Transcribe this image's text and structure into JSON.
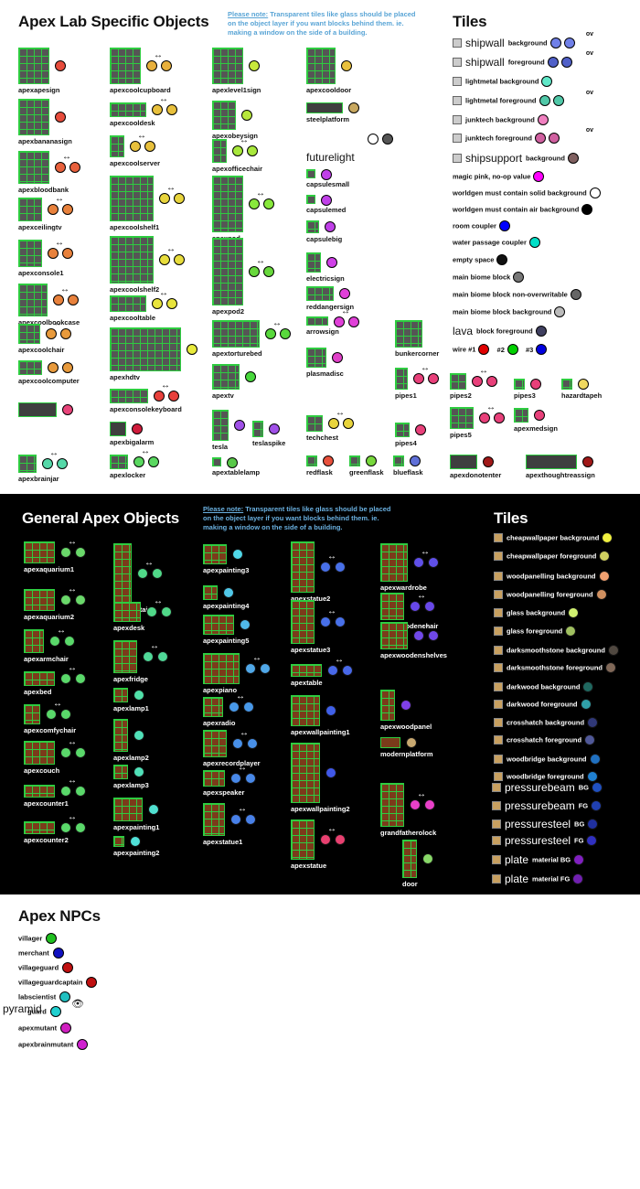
{
  "lab": {
    "title": "Apex Lab Specific Objects",
    "note_prefix": "Please note:",
    "note_text": " Transparent tiles like glass should be placed on the object layer if you want blocks behind them. ie. making a window on the side of a building.",
    "tiles_title": "Tiles",
    "objects": [
      {
        "label": "apexapesign",
        "colors": [
          "#e74c3c"
        ],
        "arrow": false
      },
      {
        "label": "apexbananasign",
        "colors": [
          "#e74c3c"
        ],
        "arrow": false
      },
      {
        "label": "apexbloodbank",
        "colors": [
          "#e8603c",
          "#e8603c"
        ],
        "arrow": true
      },
      {
        "label": "apexceilingtv",
        "colors": [
          "#e8813c",
          "#e8813c"
        ],
        "arrow": true
      },
      {
        "label": "apexconsole1",
        "colors": [
          "#e8813c",
          "#e8813c"
        ],
        "arrow": true
      },
      {
        "label": "apexcoolbookcase",
        "colors": [
          "#e8813c",
          "#e8813c"
        ],
        "arrow": true
      },
      {
        "label": "apexcoolchair",
        "colors": [
          "#e89a3c",
          "#e89a3c"
        ],
        "arrow": true
      },
      {
        "label": "apexcoolcomputer",
        "colors": [
          "#e89a3c",
          "#e89a3c"
        ],
        "arrow": false
      },
      {
        "label": "",
        "colors": [
          "#e8447a"
        ],
        "arrow": false
      },
      {
        "label": "apexbrainjar",
        "colors": [
          "#55d8a8",
          "#55d8a8"
        ],
        "arrow": true
      },
      {
        "label": "apexcoolcupboard",
        "colors": [
          "#e8b03c",
          "#e8b03c"
        ],
        "arrow": true
      },
      {
        "label": "apexcooldesk",
        "colors": [
          "#e8c03c",
          "#e8c03c"
        ],
        "arrow": true
      },
      {
        "label": "apexcoolserver",
        "colors": [
          "#e8c03c",
          "#e8c03c"
        ],
        "arrow": true
      },
      {
        "label": "apexcoolshelf1",
        "colors": [
          "#e8d43c",
          "#e8d43c"
        ],
        "arrow": true
      },
      {
        "label": "apexcoolshelf2",
        "colors": [
          "#e8dd3c",
          "#e8dd3c"
        ],
        "arrow": true
      },
      {
        "label": "apexcooltable",
        "colors": [
          "#e8e43c",
          "#e8e43c"
        ],
        "arrow": true
      },
      {
        "label": "apexhdtv",
        "colors": [
          "#e8ea3c"
        ],
        "arrow": false
      },
      {
        "label": "apexconsolekeyboard",
        "colors": [
          "#e8403c",
          "#e8403c"
        ],
        "arrow": true
      },
      {
        "label": "apexbigalarm",
        "colors": [
          "#d01c3c"
        ],
        "arrow": false
      },
      {
        "label": "apexlocker",
        "colors": [
          "#5ad860",
          "#5ad860"
        ],
        "arrow": true
      },
      {
        "label": "apexlevel1sign",
        "colors": [
          "#c8e83c"
        ],
        "arrow": false
      },
      {
        "label": "apexobeysign",
        "colors": [
          "#b8e83c"
        ],
        "arrow": false
      },
      {
        "label": "apexofficechair",
        "colors": [
          "#a8e83c",
          "#a8e83c"
        ],
        "arrow": true
      },
      {
        "label": "apexpod",
        "colors": [
          "#88e83c",
          "#88e83c"
        ],
        "arrow": true
      },
      {
        "label": "apexpod2",
        "colors": [
          "#68d83c",
          "#68d83c"
        ],
        "arrow": true
      },
      {
        "label": "apextorturebed",
        "colors": [
          "#58d83c",
          "#58d83c"
        ],
        "arrow": true
      },
      {
        "label": "apextv",
        "colors": [
          "#48d83c"
        ],
        "arrow": false
      },
      {
        "label": "tesla",
        "colors": [
          "#a050e8"
        ],
        "arrow": false
      },
      {
        "label": "teslaspike",
        "colors": [
          "#a050e8"
        ],
        "arrow": false
      },
      {
        "label": "apextablelamp",
        "colors": [
          "#58c848"
        ],
        "arrow": false
      },
      {
        "label": "apexcooldoor",
        "colors": [
          "#e8c03c"
        ],
        "arrow": false
      },
      {
        "label": "steelplatform",
        "colors": [
          "#c8a860"
        ],
        "arrow": false
      },
      {
        "label": "capsulesmall",
        "colors": [
          "#c040e8"
        ],
        "arrow": false
      },
      {
        "label": "capsulemed",
        "colors": [
          "#c040e8"
        ],
        "arrow": false
      },
      {
        "label": "capsulebig",
        "colors": [
          "#c040e8"
        ],
        "arrow": false
      },
      {
        "label": "electricsign",
        "colors": [
          "#d040e8"
        ],
        "arrow": false
      },
      {
        "label": "reddangersign",
        "colors": [
          "#e040d8"
        ],
        "arrow": false
      },
      {
        "label": "arrowsign",
        "colors": [
          "#e040d8",
          "#e040d8"
        ],
        "arrow": true
      },
      {
        "label": "plasmadisc",
        "colors": [
          "#e040c8"
        ],
        "arrow": false
      },
      {
        "label": "techchest",
        "colors": [
          "#e8d43c",
          "#e8d43c"
        ],
        "arrow": true
      },
      {
        "label": "redflask",
        "colors": [
          "#e8503c"
        ],
        "arrow": false
      },
      {
        "label": "greenflask",
        "colors": [
          "#78d83c"
        ],
        "arrow": false
      },
      {
        "label": "blueflask",
        "colors": [
          "#6070d8"
        ],
        "arrow": false
      },
      {
        "label": "bunkercorner",
        "colors": [],
        "arrow": false
      },
      {
        "label": "pipes1",
        "colors": [
          "#e8407a",
          "#e8407a"
        ],
        "arrow": true
      },
      {
        "label": "pipes2",
        "colors": [
          "#e8407a",
          "#e8407a"
        ],
        "arrow": true
      },
      {
        "label": "pipes3",
        "colors": [
          "#e8407a"
        ],
        "arrow": false
      },
      {
        "label": "pipes4",
        "colors": [
          "#e8407a"
        ],
        "arrow": false
      },
      {
        "label": "pipes5",
        "colors": [
          "#e8407a",
          "#e8407a"
        ],
        "arrow": true
      },
      {
        "label": "hazardtapeh",
        "colors": [
          "#f0d860"
        ],
        "arrow": false
      },
      {
        "label": "apexmedsign",
        "colors": [
          "#e8407a"
        ],
        "arrow": false
      },
      {
        "label": "apexdonotenter",
        "colors": [
          "#a01818"
        ],
        "arrow": false
      },
      {
        "label": "apexthoughtreassign",
        "colors": [
          "#a01818"
        ],
        "arrow": false
      },
      {
        "label": "apexdonotenter",
        "colors": [],
        "arrow": false
      }
    ],
    "futurelight": "futurelight",
    "futurelight_colors": [
      "#ffffff",
      "#555555"
    ],
    "tiles": [
      {
        "label": "background",
        "big": "shipwall",
        "colors": [
          "#7080e8",
          "#7080e8"
        ],
        "ov": true
      },
      {
        "label": "foreground",
        "big": "shipwall",
        "colors": [
          "#5060c8",
          "#5060c8"
        ],
        "ov": true
      },
      {
        "label": "lightmetal background",
        "big": "",
        "colors": [
          "#60e8c8"
        ],
        "ov": false
      },
      {
        "label": "lightmetal foreground",
        "big": "",
        "colors": [
          "#50c8a8",
          "#50c8a8"
        ],
        "ov": true
      },
      {
        "label": "junktech background",
        "big": "",
        "colors": [
          "#f080c0"
        ],
        "ov": false
      },
      {
        "label": "junktech foreground",
        "big": "",
        "colors": [
          "#d060a0",
          "#d060a0"
        ],
        "ov": true
      },
      {
        "label": "background",
        "big": "shipsupport",
        "colors": [
          "#806060"
        ],
        "ov": false
      },
      {
        "label": "magic pink, no-op value",
        "big": "",
        "colors": [
          "#ff00ff"
        ],
        "ov": false
      },
      {
        "label": "worldgen must contain solid background",
        "big": "",
        "colors": [
          "#ffffff"
        ],
        "ov": false
      },
      {
        "label": "worldgen must contain air background",
        "big": "",
        "colors": [
          "#000000"
        ],
        "ov": false
      },
      {
        "label": "room coupler",
        "big": "",
        "colors": [
          "#0000ff"
        ],
        "ov": false
      },
      {
        "label": "water passage coupler",
        "big": "",
        "colors": [
          "#00e0c8"
        ],
        "ov": false
      },
      {
        "label": "empty space",
        "big": "",
        "colors": [
          "#111111"
        ],
        "ov": false
      },
      {
        "label": "main biome block",
        "big": "",
        "colors": [
          "#777777"
        ],
        "ov": false
      },
      {
        "label": "main biome block non-overwritable",
        "big": "",
        "colors": [
          "#666666"
        ],
        "ov": false
      },
      {
        "label": "main biome block background",
        "big": "",
        "colors": [
          "#bbbbbb"
        ],
        "ov": false
      },
      {
        "label": "block foreground",
        "big": "lava",
        "colors": [
          "#404060"
        ],
        "ov": false
      }
    ],
    "wire": {
      "w1": "wire #1",
      "w2": "#2",
      "w3": "#3",
      "c1": "#e00000",
      "c2": "#00d000",
      "c3": "#0000e0"
    }
  },
  "general": {
    "title": "General Apex Objects",
    "note_prefix": "Please note:",
    "note_text": " Transparent tiles like glass should be placed on the object layer if you want blocks behind them. ie. making a window on the side of a building.",
    "tiles_title": "Tiles",
    "objects": [
      {
        "label": "apexaquarium1",
        "colors": [
          "#6ad86a",
          "#6ad86a"
        ],
        "arrow": true
      },
      {
        "label": "apexaquarium2",
        "colors": [
          "#6ad86a",
          "#6ad86a"
        ],
        "arrow": true
      },
      {
        "label": "apexarmchair",
        "colors": [
          "#5ad86a",
          "#5ad86a"
        ],
        "arrow": true
      },
      {
        "label": "apexbed",
        "colors": [
          "#5ad86a",
          "#5ad86a"
        ],
        "arrow": true
      },
      {
        "label": "apexcomfychair",
        "colors": [
          "#5ad86a",
          "#5ad86a"
        ],
        "arrow": true
      },
      {
        "label": "apexcouch",
        "colors": [
          "#5ad86a",
          "#5ad86a"
        ],
        "arrow": true
      },
      {
        "label": "apexcounter1",
        "colors": [
          "#5ad86a",
          "#5ad86a"
        ],
        "arrow": true
      },
      {
        "label": "apexcounter2",
        "colors": [
          "#5ad86a",
          "#5ad86a"
        ],
        "arrow": true
      },
      {
        "label": "apexcurtain",
        "colors": [
          "#50d888",
          "#50d888"
        ],
        "arrow": true
      },
      {
        "label": "apexdesk",
        "colors": [
          "#50d888",
          "#50d888"
        ],
        "arrow": true
      },
      {
        "label": "apexfridge",
        "colors": [
          "#50d898",
          "#50d898"
        ],
        "arrow": true
      },
      {
        "label": "apexlamp1",
        "colors": [
          "#50e0a8"
        ],
        "arrow": false
      },
      {
        "label": "apexlamp2",
        "colors": [
          "#50e0b8"
        ],
        "arrow": false
      },
      {
        "label": "apexlamp3",
        "colors": [
          "#50e0b8"
        ],
        "arrow": false
      },
      {
        "label": "apexpainting1",
        "colors": [
          "#50e0d0"
        ],
        "arrow": false
      },
      {
        "label": "apexpainting2",
        "colors": [
          "#50e0d8"
        ],
        "arrow": false
      },
      {
        "label": "apexpainting3",
        "colors": [
          "#50d8e8"
        ],
        "arrow": false
      },
      {
        "label": "apexpainting4",
        "colors": [
          "#50c8e8"
        ],
        "arrow": false
      },
      {
        "label": "apexpainting5",
        "colors": [
          "#50b8e8"
        ],
        "arrow": false
      },
      {
        "label": "apexpiano",
        "colors": [
          "#50a8e8",
          "#50a8e8"
        ],
        "arrow": true
      },
      {
        "label": "apexradio",
        "colors": [
          "#4898e8",
          "#4898e8"
        ],
        "arrow": true
      },
      {
        "label": "apexrecordplayer",
        "colors": [
          "#4890e8",
          "#4890e8"
        ],
        "arrow": true
      },
      {
        "label": "apexspeaker",
        "colors": [
          "#4888e8",
          "#4888e8"
        ],
        "arrow": true
      },
      {
        "label": "apexstatue1",
        "colors": [
          "#4880e8",
          "#4880e8"
        ],
        "arrow": true
      },
      {
        "label": "apexstatue2",
        "colors": [
          "#4870e8",
          "#4870e8"
        ],
        "arrow": true
      },
      {
        "label": "apexstatue3",
        "colors": [
          "#4870e8",
          "#4870e8"
        ],
        "arrow": true
      },
      {
        "label": "apextable",
        "colors": [
          "#4868e8",
          "#4868e8"
        ],
        "arrow": true
      },
      {
        "label": "apexwallpainting1",
        "colors": [
          "#4060e8"
        ],
        "arrow": false
      },
      {
        "label": "apexwallpainting2",
        "colors": [
          "#4058e8"
        ],
        "arrow": false
      },
      {
        "label": "apexstatue",
        "colors": [
          "#e84070",
          "#e84070"
        ],
        "arrow": true
      },
      {
        "label": "apexwardrobe",
        "colors": [
          "#6050e8",
          "#6050e8"
        ],
        "arrow": true
      },
      {
        "label": "apexwoodenchair",
        "colors": [
          "#6848e8",
          "#6848e8"
        ],
        "arrow": true
      },
      {
        "label": "apexwoodenshelves",
        "colors": [
          "#7048e8",
          "#7048e8"
        ],
        "arrow": true
      },
      {
        "label": "apexwoodpanel",
        "colors": [
          "#8040e8"
        ],
        "arrow": false
      },
      {
        "label": "modernplatform",
        "colors": [
          "#c8a870"
        ],
        "arrow": false
      },
      {
        "label": "grandfatherolock",
        "colors": [
          "#e840c8",
          "#e840c8"
        ],
        "arrow": true
      },
      {
        "label": "door",
        "colors": [
          "#88d868"
        ],
        "arrow": false
      }
    ],
    "tiles": [
      {
        "label": "cheapwallpaper background",
        "big": "",
        "colors": [
          "#f0f040"
        ]
      },
      {
        "label": "cheapwallpaper foreground",
        "big": "",
        "colors": [
          "#d0d060"
        ]
      },
      {
        "label": "woodpanelling background",
        "big": "",
        "colors": [
          "#f0a070"
        ]
      },
      {
        "label": "woodpanelling foreground",
        "big": "",
        "colors": [
          "#d09060"
        ]
      },
      {
        "label": "glass background",
        "big": "",
        "colors": [
          "#d0f070"
        ]
      },
      {
        "label": "glass foreground",
        "big": "",
        "colors": [
          "#a0c060"
        ]
      },
      {
        "label": "darksmoothstone background",
        "big": "",
        "colors": [
          "#504840"
        ]
      },
      {
        "label": "darksmoothstone foreground",
        "big": "",
        "colors": [
          "#806858"
        ]
      },
      {
        "label": "darkwood background",
        "big": "",
        "colors": [
          "#206860"
        ]
      },
      {
        "label": "darkwood foreground",
        "big": "",
        "colors": [
          "#30a0a8"
        ]
      },
      {
        "label": "crosshatch background",
        "big": "",
        "colors": [
          "#303878"
        ]
      },
      {
        "label": "crosshatch foreground",
        "big": "",
        "colors": [
          "#505898"
        ]
      },
      {
        "label": "woodbridge background",
        "big": "",
        "colors": [
          "#2070c0"
        ]
      },
      {
        "label": "woodbridge foreground",
        "big": "",
        "colors": [
          "#2080d0"
        ]
      },
      {
        "label": "BG",
        "big": "pressurebeam",
        "colors": [
          "#2050c0"
        ]
      },
      {
        "label": "FG",
        "big": "pressurebeam",
        "colors": [
          "#2040b0"
        ]
      },
      {
        "label": "BG",
        "big": "pressuresteel",
        "colors": [
          "#2030a0"
        ]
      },
      {
        "label": "FG",
        "big": "pressuresteel",
        "colors": [
          "#3030c0"
        ]
      },
      {
        "label": "material BG",
        "big": "plate",
        "colors": [
          "#8020c0"
        ]
      },
      {
        "label": "material FG",
        "big": "plate",
        "colors": [
          "#7020b0"
        ]
      }
    ]
  },
  "npcs": {
    "title": "Apex NPCs",
    "items": [
      {
        "label": "villager",
        "color": "#20c020"
      },
      {
        "label": "merchant",
        "color": "#1010c0"
      },
      {
        "label": "villageguard",
        "color": "#c01010"
      },
      {
        "label": "villageguardcaptain",
        "color": "#c01010"
      },
      {
        "label": "labscientist",
        "color": "#20c0c0"
      },
      {
        "label": "guard",
        "color": "#20d0d0"
      },
      {
        "label": "apexmutant",
        "color": "#d020c0"
      },
      {
        "label": "apexbrainmutant",
        "color": "#d020d0"
      }
    ],
    "pyramid": "pyramid"
  }
}
